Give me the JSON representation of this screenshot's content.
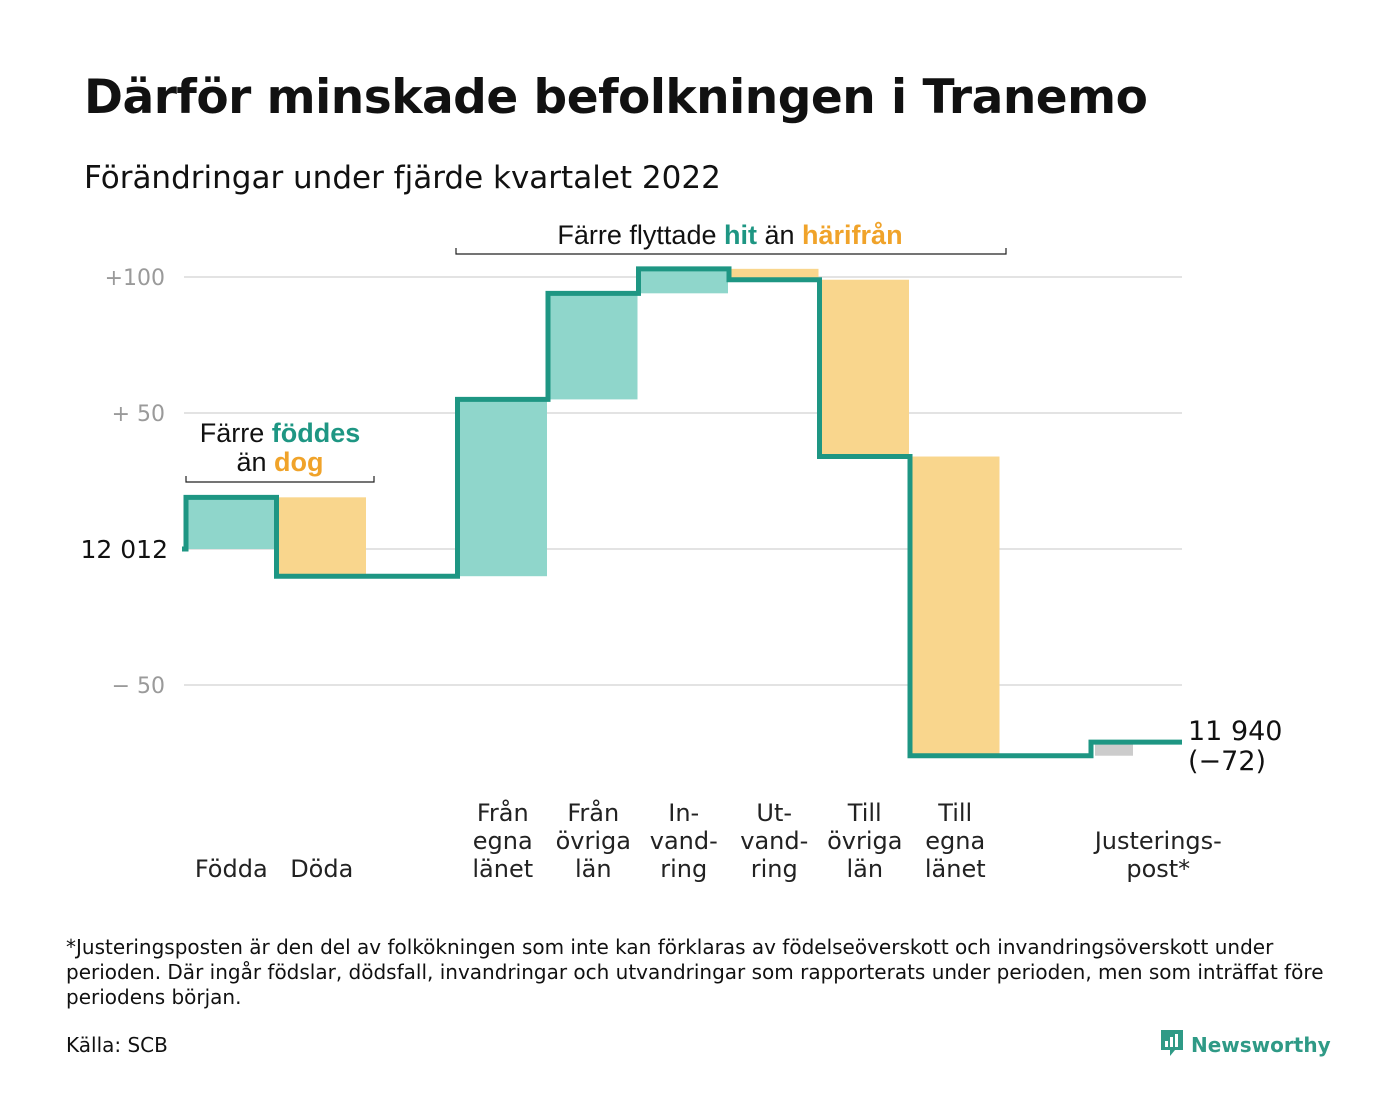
{
  "title": "Därför minskade befolkningen i Tranemo",
  "subtitle": "Förändringar under fjärde kvartalet 2022",
  "colors": {
    "teal_line": "#1e9683",
    "teal_fill": "#8fd6cb",
    "orange_fill": "#f9d68d",
    "orange_text": "#f0a32a",
    "teal_text": "#1e9683",
    "gray_fill": "#cccccc",
    "grid": "#e3e3e3"
  },
  "annotations": {
    "births": {
      "line1_pre": "Färre ",
      "line1_hl": "föddes",
      "line2_pre": "än ",
      "line2_hl": "dog"
    },
    "moves": {
      "pre": "Färre flyttade ",
      "hl1": "hit",
      "mid": " än ",
      "hl2": "härifrån"
    }
  },
  "footnote": "*Justeringsposten är den del av folkökningen som inte kan förklaras av födelseöverskott och invandringsöverskott under perioden. Där ingår födslar, dödsfall, invandringar och utvandringar som rapporterats under perioden, men som inträffat före periodens början.",
  "source": "Källa: SCB",
  "brand": "Newsworthy",
  "chart_data": {
    "type": "waterfall",
    "start_value": 12012,
    "start_label": "12 012",
    "end_value": 11940,
    "end_label": "11 940",
    "end_change_label": "(−72)",
    "y_range_relative": [
      -60,
      110
    ],
    "y_ticks": [
      {
        "value": 100,
        "label": "+100"
      },
      {
        "value": 50,
        "label": "+ 50"
      },
      {
        "value": 0,
        "label": ""
      },
      {
        "value": -50,
        "label": "− 50"
      }
    ],
    "grid": true,
    "steps": [
      {
        "label": [
          "Födda"
        ],
        "change": 19,
        "kind": "in"
      },
      {
        "label": [
          "Döda"
        ],
        "change": -29,
        "kind": "out"
      },
      {
        "label": [
          ""
        ],
        "change": 0,
        "kind": "none"
      },
      {
        "label": [
          "Från",
          "egna",
          "länet"
        ],
        "change": 65,
        "kind": "in"
      },
      {
        "label": [
          "Från",
          "övriga",
          "län"
        ],
        "change": 39,
        "kind": "in"
      },
      {
        "label": [
          "In-",
          "vand-",
          "ring"
        ],
        "change": 9,
        "kind": "in"
      },
      {
        "label": [
          "Ut-",
          "vand-",
          "ring"
        ],
        "change": -4,
        "kind": "out"
      },
      {
        "label": [
          "Till",
          "övriga",
          "län"
        ],
        "change": -65,
        "kind": "out"
      },
      {
        "label": [
          "Till",
          "egna",
          "länet"
        ],
        "change": -110,
        "kind": "out"
      },
      {
        "label": [
          ""
        ],
        "change": 0,
        "kind": "none"
      },
      {
        "label": [
          "Justerings-",
          "post*"
        ],
        "change": 5,
        "kind": "adjust"
      }
    ]
  }
}
